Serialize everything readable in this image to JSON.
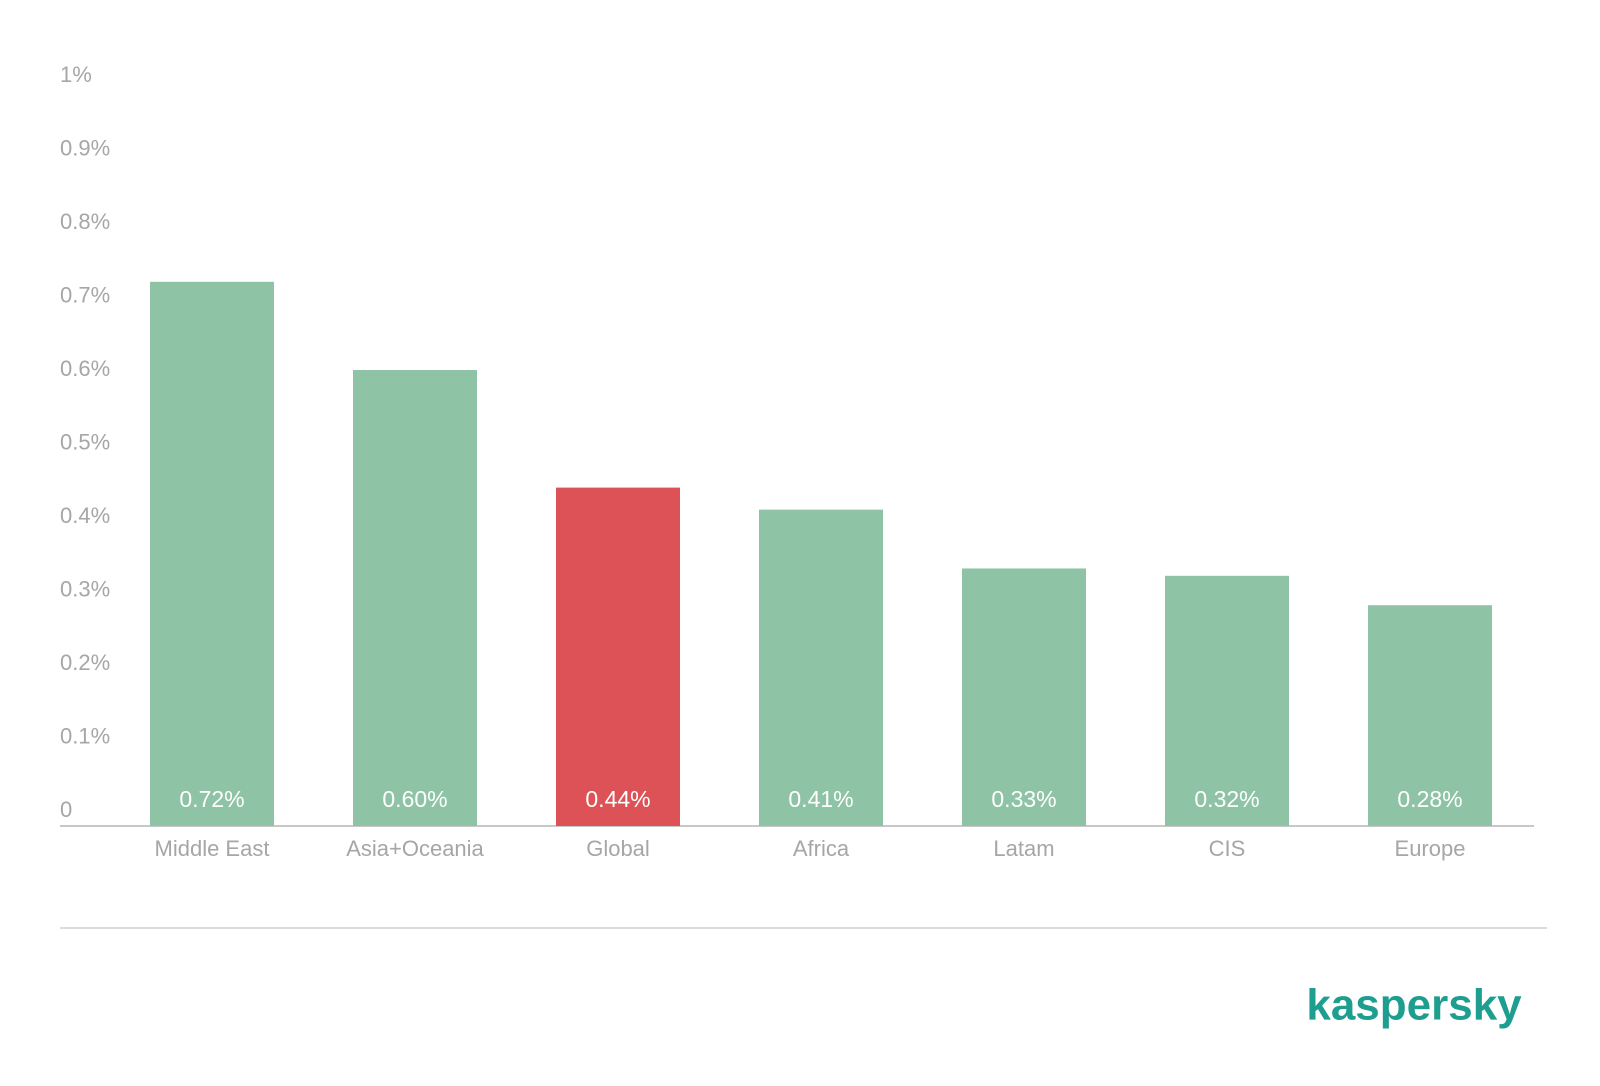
{
  "chart_data": {
    "type": "bar",
    "categories": [
      "Middle East",
      "Asia+Oceania",
      "Global",
      "Africa",
      "Latam",
      "CIS",
      "Europe"
    ],
    "values": [
      0.72,
      0.6,
      0.44,
      0.41,
      0.33,
      0.32,
      0.28
    ],
    "value_labels": [
      "0.72%",
      "0.60%",
      "0.44%",
      "0.41%",
      "0.33%",
      "0.32%",
      "0.28%"
    ],
    "colors": [
      "#8fc3a6",
      "#8fc3a6",
      "#dc5256",
      "#8fc3a6",
      "#8fc3a6",
      "#8fc3a6",
      "#8fc3a6"
    ],
    "ylim": [
      0,
      1
    ],
    "yticks": [
      0,
      {
        "value": 0.1,
        "label": "0.1%"
      },
      {
        "value": 0.2,
        "label": "0.2%"
      },
      {
        "value": 0.3,
        "label": "0.3%"
      },
      {
        "value": 0.4,
        "label": "0.4%"
      },
      {
        "value": 0.5,
        "label": "0.5%"
      },
      {
        "value": 0.6,
        "label": "0.6%"
      },
      {
        "value": 0.7,
        "label": "0.7%"
      },
      {
        "value": 0.8,
        "label": "0.8%"
      },
      {
        "value": 0.9,
        "label": "0.9%"
      },
      {
        "value": 1,
        "label": "1%"
      }
    ],
    "grid": false
  },
  "logo": "kaspersky"
}
